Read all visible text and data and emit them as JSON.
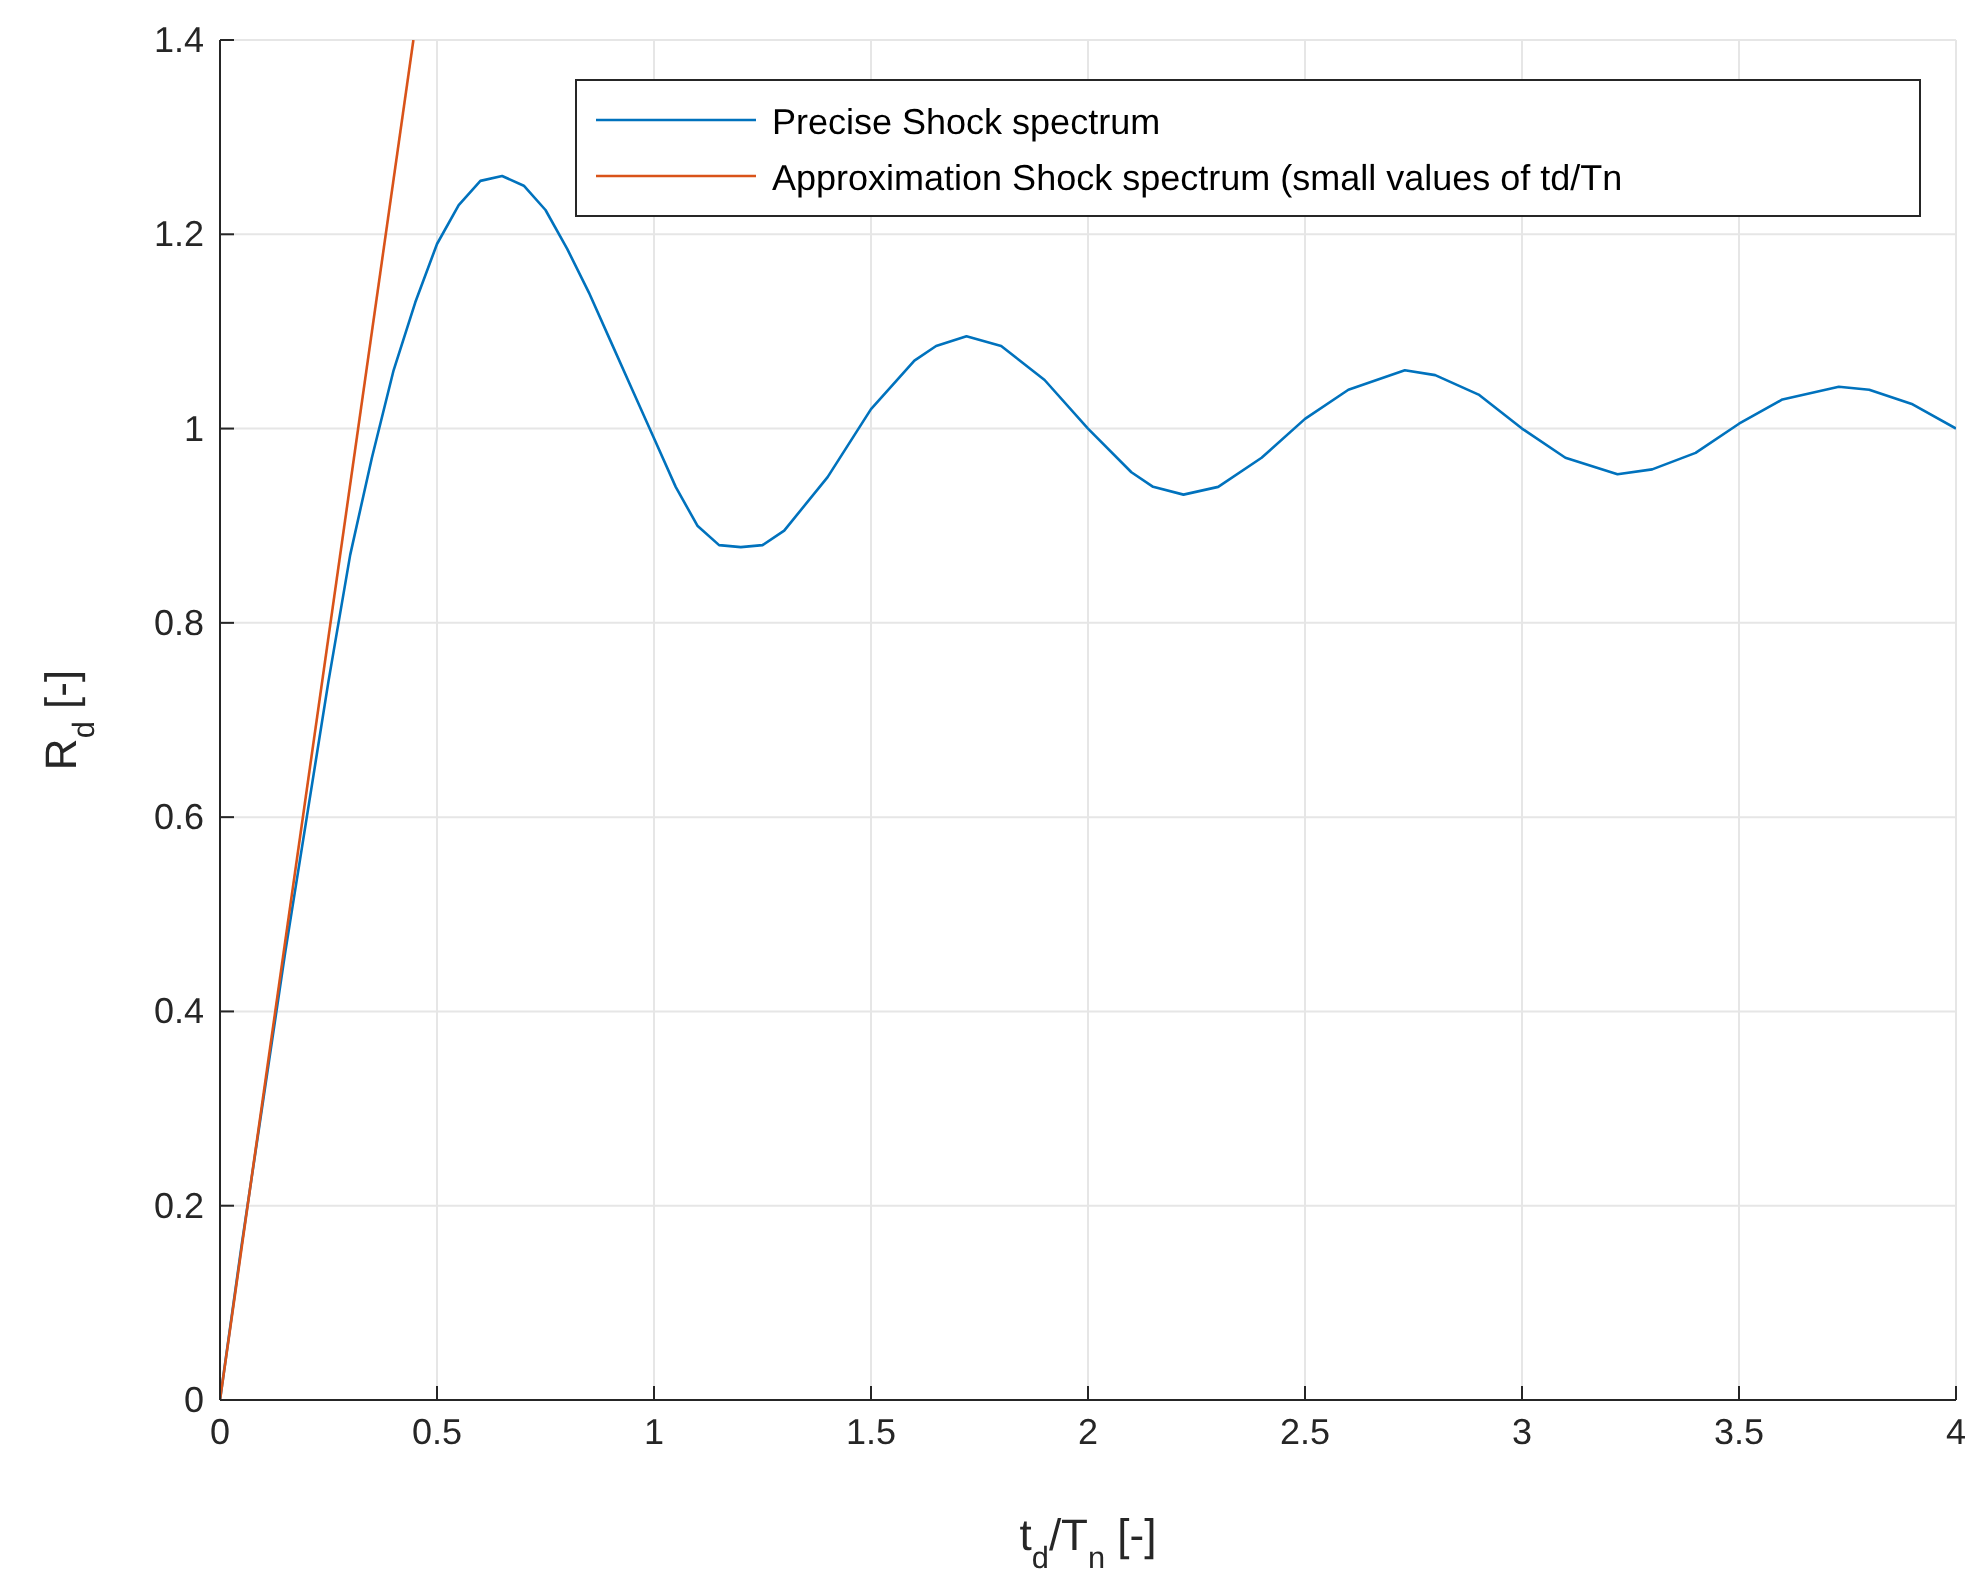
{
  "chart_data": {
    "type": "line",
    "xlabel": "t$_{d}$/T$_{n}$ [-]",
    "ylabel": "R$_{d}$ [-]",
    "xlim": [
      0,
      4
    ],
    "ylim": [
      0,
      1.4
    ],
    "xticks": [
      0,
      0.5,
      1,
      1.5,
      2,
      2.5,
      3,
      3.5,
      4
    ],
    "yticks": [
      0,
      0.2,
      0.4,
      0.6,
      0.8,
      1,
      1.2,
      1.4
    ],
    "grid": true,
    "legend": "top right",
    "series": [
      {
        "name": "Precise Shock spectrum",
        "color": "#0072bd",
        "x": [
          0,
          0.05,
          0.1,
          0.15,
          0.2,
          0.25,
          0.3,
          0.35,
          0.4,
          0.45,
          0.5,
          0.55,
          0.6,
          0.65,
          0.7,
          0.75,
          0.8,
          0.85,
          0.9,
          0.95,
          1.0,
          1.05,
          1.1,
          1.15,
          1.2,
          1.25,
          1.3,
          1.4,
          1.5,
          1.6,
          1.65,
          1.72,
          1.8,
          1.9,
          2.0,
          2.1,
          2.15,
          2.22,
          2.3,
          2.4,
          2.5,
          2.6,
          2.73,
          2.8,
          2.9,
          3.0,
          3.1,
          3.22,
          3.3,
          3.4,
          3.5,
          3.6,
          3.73,
          3.8,
          3.9,
          4.0
        ],
        "values": [
          0,
          0.16,
          0.31,
          0.46,
          0.6,
          0.74,
          0.87,
          0.97,
          1.06,
          1.13,
          1.19,
          1.23,
          1.255,
          1.26,
          1.25,
          1.225,
          1.185,
          1.14,
          1.09,
          1.04,
          0.99,
          0.94,
          0.9,
          0.88,
          0.878,
          0.88,
          0.895,
          0.95,
          1.02,
          1.07,
          1.085,
          1.095,
          1.085,
          1.05,
          1.0,
          0.955,
          0.94,
          0.932,
          0.94,
          0.97,
          1.01,
          1.04,
          1.06,
          1.055,
          1.035,
          1.0,
          0.97,
          0.953,
          0.958,
          0.975,
          1.005,
          1.03,
          1.043,
          1.04,
          1.025,
          1.0
        ]
      },
      {
        "name": "Approximation Shock spectrum (small values of td/Tn",
        "color": "#d95319",
        "x": [
          0,
          0.4456
        ],
        "values": [
          0,
          1.4
        ]
      }
    ]
  }
}
